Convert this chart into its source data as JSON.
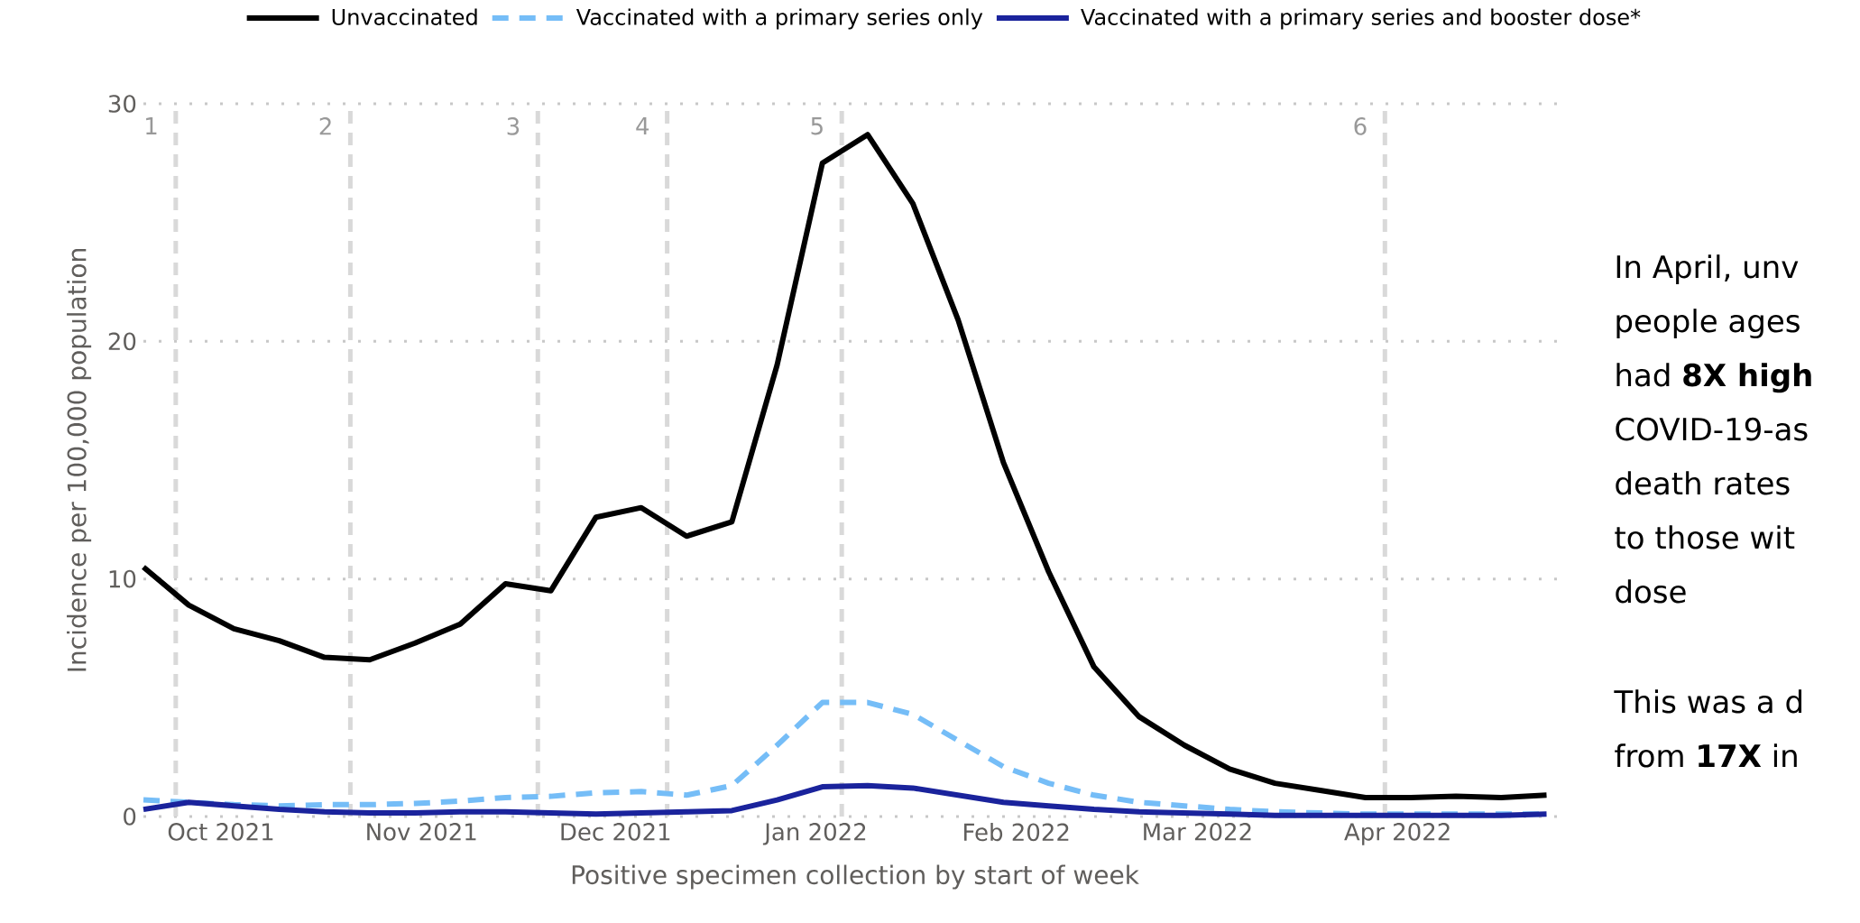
{
  "chart_data": {
    "type": "line",
    "xlabel": "Positive specimen collection by start of week",
    "ylabel": "Incidence per 100,000 population",
    "x": [
      "2021-09-19",
      "2021-09-26",
      "2021-10-03",
      "2021-10-10",
      "2021-10-17",
      "2021-10-24",
      "2021-10-31",
      "2021-11-07",
      "2021-11-14",
      "2021-11-21",
      "2021-11-28",
      "2021-12-05",
      "2021-12-12",
      "2021-12-19",
      "2021-12-26",
      "2022-01-02",
      "2022-01-09",
      "2022-01-16",
      "2022-01-23",
      "2022-01-30",
      "2022-02-06",
      "2022-02-13",
      "2022-02-20",
      "2022-02-27",
      "2022-03-06",
      "2022-03-13",
      "2022-03-20",
      "2022-03-27",
      "2022-04-03",
      "2022-04-10",
      "2022-04-17",
      "2022-04-24"
    ],
    "series": [
      {
        "name": "Unvaccinated",
        "color": "#000000",
        "line_style": "solid",
        "values": [
          10.5,
          8.9,
          7.9,
          7.4,
          6.7,
          6.6,
          7.3,
          8.1,
          9.8,
          9.5,
          12.6,
          13.0,
          11.8,
          12.4,
          19.0,
          27.5,
          28.7,
          25.8,
          20.9,
          14.9,
          10.3,
          6.3,
          4.2,
          3.0,
          2.0,
          1.4,
          1.1,
          0.8,
          0.8,
          0.85,
          0.8,
          0.9
        ]
      },
      {
        "name": "Vaccinated with a primary series only",
        "color": "#75bdf7",
        "line_style": "dashed",
        "values": [
          0.7,
          0.6,
          0.5,
          0.45,
          0.5,
          0.5,
          0.55,
          0.65,
          0.8,
          0.85,
          1.0,
          1.05,
          0.9,
          1.3,
          3.0,
          4.8,
          4.8,
          4.3,
          3.2,
          2.1,
          1.4,
          0.9,
          0.6,
          0.45,
          0.3,
          0.2,
          0.15,
          0.1,
          0.1,
          0.1,
          0.1,
          0.1
        ]
      },
      {
        "name": "Vaccinated with a primary series and booster dose*",
        "color": "#1a239c",
        "line_style": "solid",
        "values": [
          0.3,
          0.6,
          0.45,
          0.3,
          0.2,
          0.15,
          0.15,
          0.2,
          0.2,
          0.15,
          0.1,
          0.15,
          0.2,
          0.25,
          0.7,
          1.25,
          1.3,
          1.2,
          0.9,
          0.6,
          0.45,
          0.3,
          0.2,
          0.15,
          0.1,
          0.05,
          0.05,
          0.05,
          0.05,
          0.05,
          0.05,
          0.1
        ]
      }
    ],
    "xlim": [
      "2021-09-19",
      "2022-04-27"
    ],
    "xticks": [
      {
        "value": "2021-10-01",
        "label": "Oct 2021"
      },
      {
        "value": "2021-11-01",
        "label": "Nov 2021"
      },
      {
        "value": "2021-12-01",
        "label": "Dec 2021"
      },
      {
        "value": "2022-01-01",
        "label": "Jan 2022"
      },
      {
        "value": "2022-02-01",
        "label": "Feb 2022"
      },
      {
        "value": "2022-03-01",
        "label": "Mar 2022"
      },
      {
        "value": "2022-04-01",
        "label": "Apr 2022"
      }
    ],
    "ylim": [
      0,
      30
    ],
    "yticks": [
      0,
      10,
      20,
      30
    ],
    "grid": "y",
    "legend": "top",
    "marker": "none",
    "ref_lines": [
      {
        "axis": "x",
        "value": "2021-09-24",
        "label": "1",
        "color": "#d9d9d9",
        "line_style": "dashed"
      },
      {
        "axis": "x",
        "value": "2021-10-21",
        "label": "2",
        "color": "#d9d9d9",
        "line_style": "dashed"
      },
      {
        "axis": "x",
        "value": "2021-11-19",
        "label": "3",
        "color": "#d9d9d9",
        "line_style": "dashed"
      },
      {
        "axis": "x",
        "value": "2021-12-09",
        "label": "4",
        "color": "#d9d9d9",
        "line_style": "dashed"
      },
      {
        "axis": "x",
        "value": "2022-01-05",
        "label": "5",
        "color": "#d9d9d9",
        "line_style": "dashed"
      },
      {
        "axis": "x",
        "value": "2022-03-30",
        "label": "6",
        "color": "#d9d9d9",
        "line_style": "dashed"
      }
    ],
    "annotations": [
      "In April, unv",
      "people ages",
      "had **8X high**",
      "COVID-19-as",
      "death rates",
      "to those wit",
      "dose",
      "This was a d",
      "from **17X** in"
    ]
  }
}
